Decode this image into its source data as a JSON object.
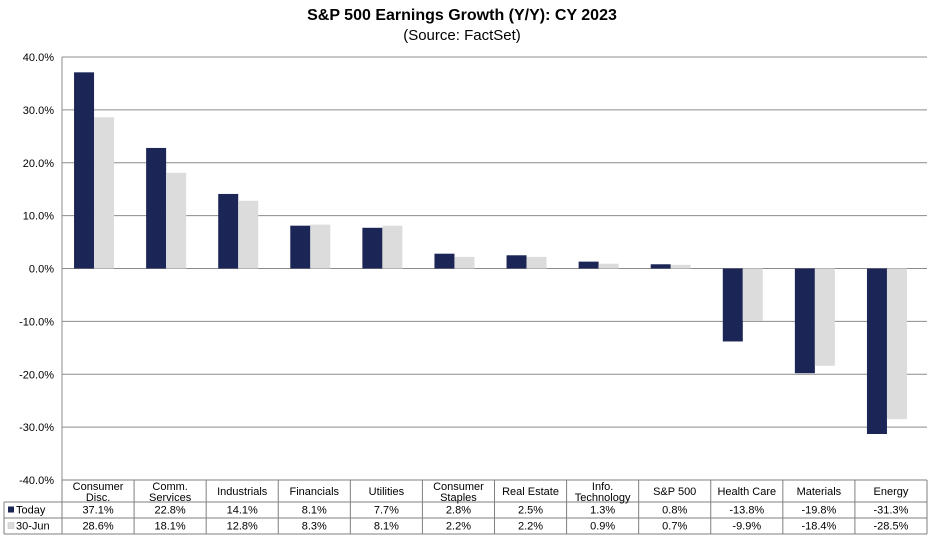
{
  "chart_data": {
    "type": "bar",
    "title": "S&P 500 Earnings Growth (Y/Y): CY 2023",
    "subtitle": "(Source: FactSet)",
    "categories": [
      [
        "Consumer",
        "Disc."
      ],
      [
        "Comm.",
        "Services"
      ],
      [
        "Industrials"
      ],
      [
        "Financials"
      ],
      [
        "Utilities"
      ],
      [
        "Consumer",
        "Staples"
      ],
      [
        "Real Estate"
      ],
      [
        "Info.",
        "Technology"
      ],
      [
        "S&P 500"
      ],
      [
        "Health Care"
      ],
      [
        "Materials"
      ],
      [
        "Energy"
      ]
    ],
    "series": [
      {
        "name": "Today",
        "color": "#1b2656",
        "values": [
          37.1,
          22.8,
          14.1,
          8.1,
          7.7,
          2.8,
          2.5,
          1.3,
          0.8,
          -13.8,
          -19.8,
          -31.3
        ],
        "labels": [
          "37.1%",
          "22.8%",
          "14.1%",
          "8.1%",
          "7.7%",
          "2.8%",
          "2.5%",
          "1.3%",
          "0.8%",
          "-13.8%",
          "-19.8%",
          "-31.3%"
        ]
      },
      {
        "name": "30-Jun",
        "color": "#dcdcdc",
        "values": [
          28.6,
          18.1,
          12.8,
          8.3,
          8.1,
          2.2,
          2.2,
          0.9,
          0.7,
          -9.9,
          -18.4,
          -28.5
        ],
        "labels": [
          "28.6%",
          "18.1%",
          "12.8%",
          "8.3%",
          "8.1%",
          "2.2%",
          "2.2%",
          "0.9%",
          "0.7%",
          "-9.9%",
          "-18.4%",
          "-28.5%"
        ]
      }
    ],
    "ylim": [
      -40,
      40
    ],
    "yticks": [
      "40.0%",
      "30.0%",
      "20.0%",
      "10.0%",
      "0.0%",
      "-10.0%",
      "-20.0%",
      "-30.0%",
      "-40.0%"
    ],
    "ytick_values": [
      40,
      30,
      20,
      10,
      0,
      -10,
      -20,
      -30,
      -40
    ],
    "grid": true,
    "legend": "data-table"
  }
}
